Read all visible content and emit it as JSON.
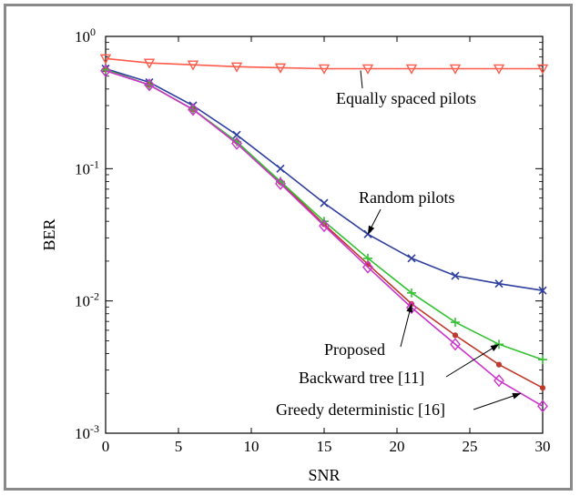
{
  "chart_data": {
    "type": "line",
    "xlabel": "SNR",
    "ylabel": "BER",
    "xlim": [
      0,
      30
    ],
    "ylim": [
      0.001,
      1
    ],
    "yscale": "log",
    "grid": false,
    "x_ticks": [
      "0",
      "5",
      "10",
      "15",
      "20",
      "25",
      "30"
    ],
    "y_ticks": [
      {
        "value": 1,
        "base": "10",
        "exp": "0"
      },
      {
        "value": 0.1,
        "base": "10",
        "exp": "-1"
      },
      {
        "value": 0.01,
        "base": "10",
        "exp": "-2"
      },
      {
        "value": 0.001,
        "base": "10",
        "exp": "-3"
      }
    ],
    "x": [
      0,
      3,
      6,
      9,
      12,
      15,
      18,
      21,
      24,
      27,
      30
    ],
    "series": [
      {
        "name": "Equally spaced pilots",
        "marker": "triangle-down",
        "color": "#ff5a4a",
        "values": [
          0.68,
          0.63,
          0.61,
          0.59,
          0.58,
          0.57,
          0.57,
          0.57,
          0.57,
          0.57,
          0.57
        ]
      },
      {
        "name": "Random pilots",
        "marker": "x",
        "color": "#2f3f9f",
        "values": [
          0.57,
          0.45,
          0.3,
          0.18,
          0.1,
          0.055,
          0.032,
          0.021,
          0.0155,
          0.0135,
          0.012
        ]
      },
      {
        "name": "Proposed",
        "marker": "circle-small",
        "color": "#c0392b",
        "values": [
          0.56,
          0.43,
          0.28,
          0.16,
          0.079,
          0.038,
          0.019,
          0.0095,
          0.0055,
          0.0033,
          0.0022
        ]
      },
      {
        "name": "Backward tree [11]",
        "marker": "plus",
        "color": "#33c233",
        "values": [
          0.56,
          0.43,
          0.28,
          0.16,
          0.08,
          0.04,
          0.021,
          0.0115,
          0.0069,
          0.0047,
          0.0036
        ]
      },
      {
        "name": "Greedy deterministic [16]",
        "marker": "diamond",
        "color": "#cc33cc",
        "values": [
          0.55,
          0.43,
          0.28,
          0.155,
          0.077,
          0.037,
          0.018,
          0.0089,
          0.0047,
          0.0025,
          0.0016
        ]
      }
    ],
    "annotations": [
      {
        "text": "Equally spaced pilots",
        "series": 0,
        "point_x": 17.5
      },
      {
        "text": "Random pilots",
        "series": 1,
        "point_x": 18
      },
      {
        "text": "Proposed",
        "series": 2,
        "point_x": 21
      },
      {
        "text": "Backward tree [11]",
        "series": 3,
        "point_x": 27
      },
      {
        "text": "Greedy deterministic [16]",
        "series": 4,
        "point_x": 28.5
      }
    ]
  }
}
